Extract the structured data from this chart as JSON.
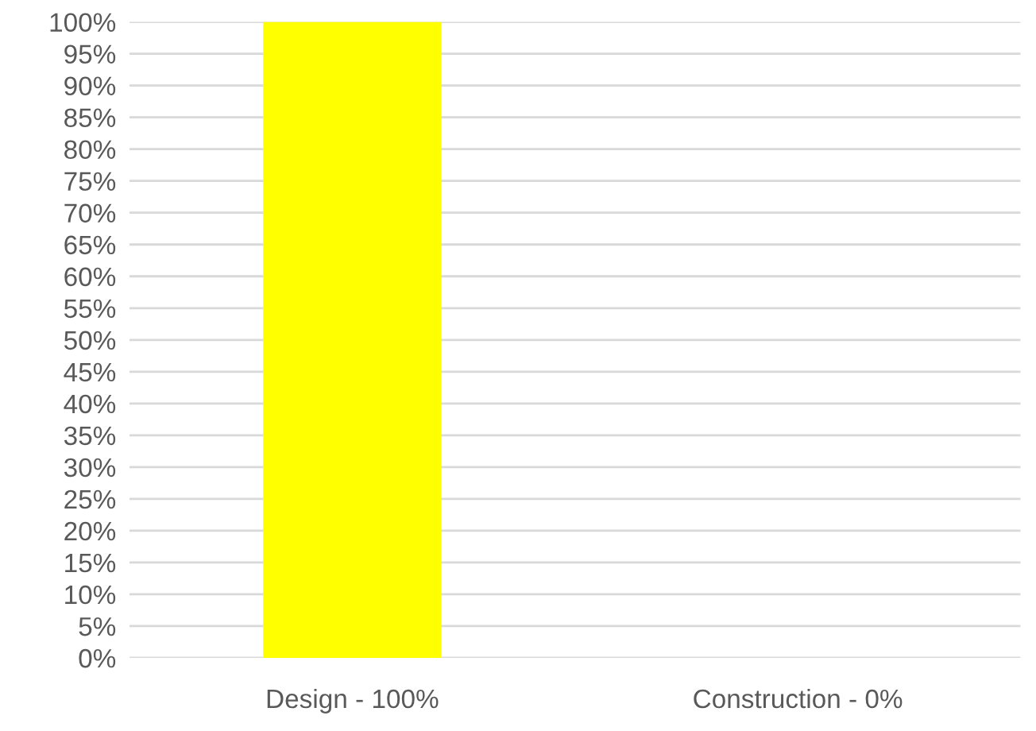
{
  "chart_data": {
    "type": "bar",
    "categories": [
      "Design - 100%",
      "Construction - 0%"
    ],
    "values": [
      100,
      0
    ],
    "color": "#ffff00",
    "ylim": [
      0,
      100
    ],
    "yticks": [
      {
        "value": 0,
        "label": "0%"
      },
      {
        "value": 5,
        "label": "5%"
      },
      {
        "value": 10,
        "label": "10%"
      },
      {
        "value": 15,
        "label": "15%"
      },
      {
        "value": 20,
        "label": "20%"
      },
      {
        "value": 25,
        "label": "25%"
      },
      {
        "value": 30,
        "label": "30%"
      },
      {
        "value": 35,
        "label": "35%"
      },
      {
        "value": 40,
        "label": "40%"
      },
      {
        "value": 45,
        "label": "45%"
      },
      {
        "value": 50,
        "label": "50%"
      },
      {
        "value": 55,
        "label": "55%"
      },
      {
        "value": 60,
        "label": "60%"
      },
      {
        "value": 65,
        "label": "65%"
      },
      {
        "value": 70,
        "label": "70%"
      },
      {
        "value": 75,
        "label": "75%"
      },
      {
        "value": 80,
        "label": "80%"
      },
      {
        "value": 85,
        "label": "85%"
      },
      {
        "value": 90,
        "label": "90%"
      },
      {
        "value": 95,
        "label": "95%"
      },
      {
        "value": 100,
        "label": "100%"
      }
    ],
    "grid": "y"
  }
}
